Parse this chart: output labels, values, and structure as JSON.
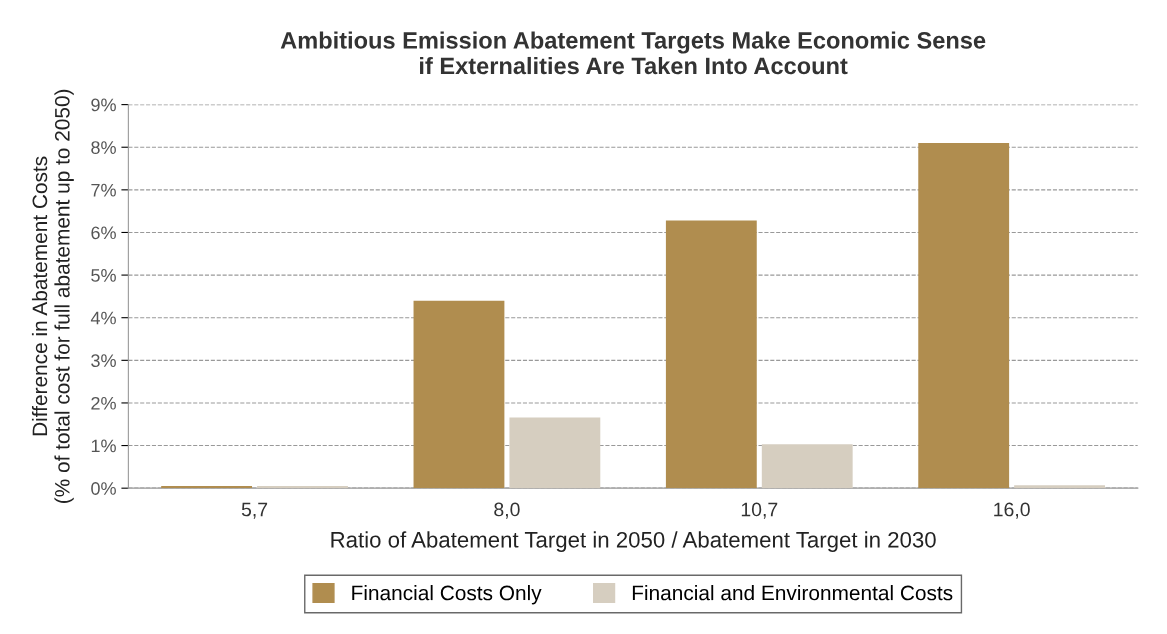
{
  "chart_data": {
    "type": "bar",
    "title": "Ambitious Emission Abatement Targets Make Economic Sense\nif Externalities Are Taken Into Account",
    "xlabel": "Ratio of Abatement Target in 2050 / Abatement Target in 2030",
    "ylabel": "Difference in Abatement Costs\n(% of total cost for full abatement up to 2050)",
    "categories": [
      "5,7",
      "8,0",
      "10,7",
      "16,0"
    ],
    "series": [
      {
        "name": "Financial Costs Only",
        "color": "#b08d4f",
        "values": [
          0.05,
          4.4,
          6.28,
          8.1
        ]
      },
      {
        "name": "Financial and Environmental Costs",
        "color": "#d6cec0",
        "values": [
          0.05,
          1.66,
          1.03,
          0.07
        ]
      }
    ],
    "ylim": [
      0,
      9
    ],
    "yticks": [
      {
        "value": 0,
        "label": "0%"
      },
      {
        "value": 1,
        "label": "1%"
      },
      {
        "value": 2,
        "label": "2%"
      },
      {
        "value": 3,
        "label": "3%"
      },
      {
        "value": 4,
        "label": "4%"
      },
      {
        "value": 5,
        "label": "5%"
      },
      {
        "value": 6,
        "label": "6%"
      },
      {
        "value": 7,
        "label": "7%"
      },
      {
        "value": 8,
        "label": "8%"
      },
      {
        "value": 9,
        "label": "9%"
      }
    ],
    "grid": "y",
    "legend": "bottom"
  }
}
